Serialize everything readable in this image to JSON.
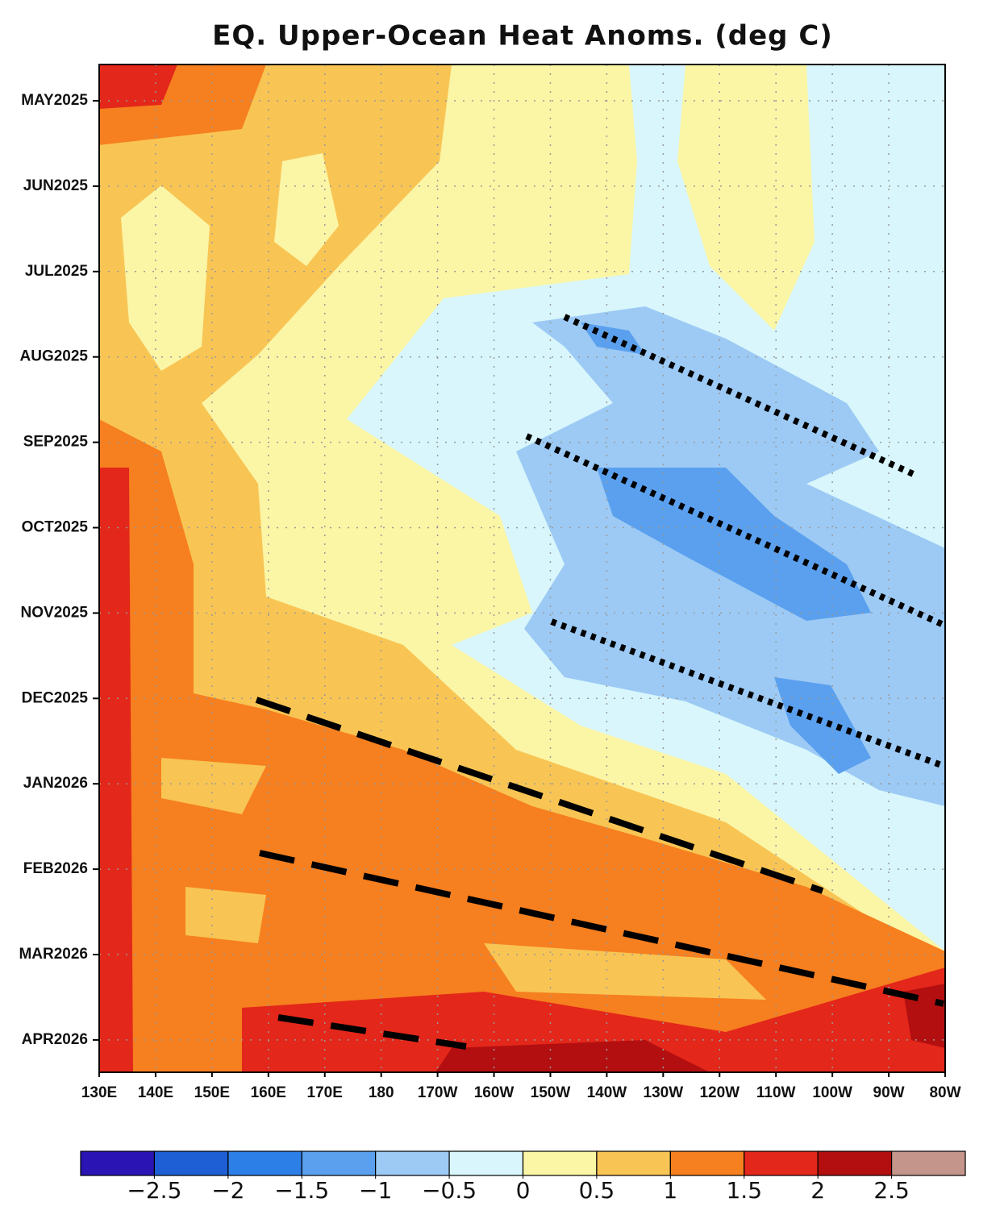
{
  "chart_data": {
    "type": "hovmoller",
    "title": "EQ. Upper-Ocean Heat Anoms. (deg C)",
    "xlim": [
      130,
      280
    ],
    "xticks": [
      {
        "value": 130,
        "label": "130E"
      },
      {
        "value": 140,
        "label": "140E"
      },
      {
        "value": 150,
        "label": "150E"
      },
      {
        "value": 160,
        "label": "160E"
      },
      {
        "value": 170,
        "label": "170E"
      },
      {
        "value": 180,
        "label": "180"
      },
      {
        "value": 190,
        "label": "170W"
      },
      {
        "value": 200,
        "label": "160W"
      },
      {
        "value": 210,
        "label": "150W"
      },
      {
        "value": 220,
        "label": "140W"
      },
      {
        "value": 230,
        "label": "130W"
      },
      {
        "value": 240,
        "label": "120W"
      },
      {
        "value": 250,
        "label": "110W"
      },
      {
        "value": 260,
        "label": "100W"
      },
      {
        "value": 270,
        "label": "90W"
      },
      {
        "value": 280,
        "label": "80W"
      }
    ],
    "yticks": [
      {
        "value": "2025-05",
        "label": "MAY2025"
      },
      {
        "value": "2025-06",
        "label": "JUN2025"
      },
      {
        "value": "2025-07",
        "label": "JUL2025"
      },
      {
        "value": "2025-08",
        "label": "AUG2025"
      },
      {
        "value": "2025-09",
        "label": "SEP2025"
      },
      {
        "value": "2025-10",
        "label": "OCT2025"
      },
      {
        "value": "2025-11",
        "label": "NOV2025"
      },
      {
        "value": "2025-12",
        "label": "DEC2025"
      },
      {
        "value": "2026-01",
        "label": "JAN2026"
      },
      {
        "value": "2026-02",
        "label": "FEB2026"
      },
      {
        "value": "2026-03",
        "label": "MAR2026"
      },
      {
        "value": "2026-04",
        "label": "APR2026"
      }
    ],
    "grid": true,
    "colorbar": {
      "colors": [
        "#2a14b4",
        "#1e5fd6",
        "#2d7fe8",
        "#5aa0ee",
        "#9ccaf5",
        "#d8f6fb",
        "#fbf5a6",
        "#f8c554",
        "#f67f1f",
        "#e3271a",
        "#b30f10",
        "#c4958b"
      ],
      "ticks": [
        {
          "value": -2.5,
          "label": "−2.5"
        },
        {
          "value": -2,
          "label": "−2"
        },
        {
          "value": -1.5,
          "label": "−1.5"
        },
        {
          "value": -1,
          "label": "−1"
        },
        {
          "value": -0.5,
          "label": "−0.5"
        },
        0,
        0.5,
        1,
        1.5,
        2,
        2.5
      ]
    }
  }
}
